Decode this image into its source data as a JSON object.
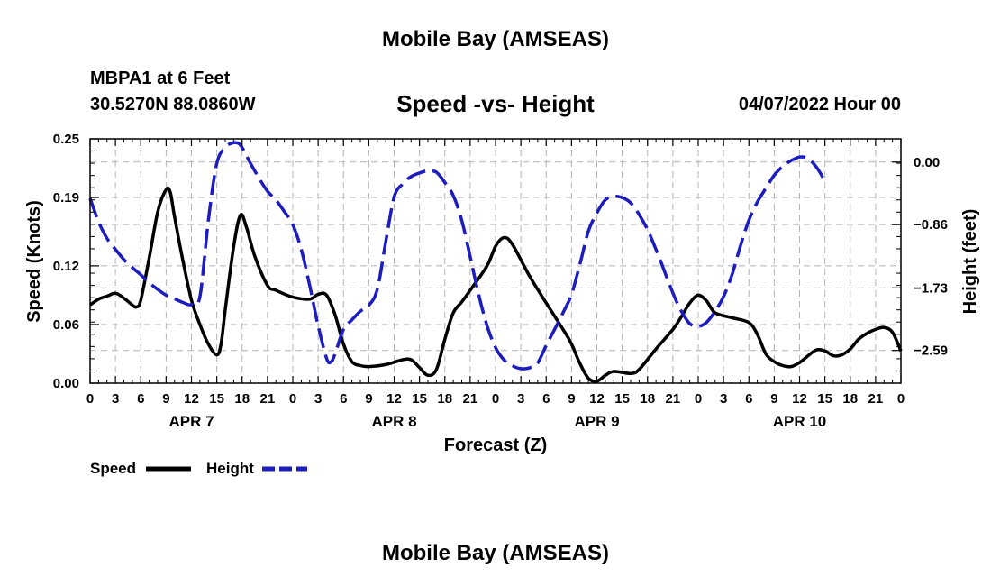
{
  "page": {
    "title_top": "Mobile Bay (AMSEAS)",
    "station": "MBPA1 at 6 Feet",
    "coords": "30.5270N  88.0860W",
    "date": "04/07/2022 Hour 00",
    "title_bottom": "Mobile Bay (AMSEAS)"
  },
  "chart_data": {
    "type": "line",
    "title": "Speed -vs- Height",
    "xlabel": "Forecast (Z)",
    "ylabel": "Speed (Knots)",
    "y2label": "Height (feet)",
    "x_unit": "hours from 04/07/2022 00Z",
    "xlim": [
      0,
      96
    ],
    "ylim": [
      0,
      0.25
    ],
    "y2lim": [
      -3.04,
      0.32
    ],
    "y_ticks": [
      0.0,
      0.06,
      0.12,
      0.19,
      0.25
    ],
    "y_tick_labels": [
      "0.00",
      "0.06",
      "0.12",
      "0.19",
      "0.25"
    ],
    "y2_ticks": [
      0.0,
      -0.86,
      -1.73,
      -2.59
    ],
    "y2_tick_labels": [
      "0.00",
      "−0.86",
      "−1.73",
      "−2.59"
    ],
    "x_ticks": [
      0,
      3,
      6,
      9,
      12,
      15,
      18,
      21,
      24,
      27,
      30,
      33,
      36,
      39,
      42,
      45,
      48,
      51,
      54,
      57,
      60,
      63,
      66,
      69,
      72,
      75,
      78,
      81,
      84,
      87,
      90,
      93,
      96
    ],
    "x_tick_labels": [
      "0",
      "3",
      "6",
      "9",
      "12",
      "15",
      "18",
      "21",
      "0",
      "3",
      "6",
      "9",
      "12",
      "15",
      "18",
      "21",
      "0",
      "3",
      "6",
      "9",
      "12",
      "15",
      "18",
      "21",
      "0",
      "3",
      "6",
      "9",
      "12",
      "15",
      "18",
      "21",
      "0"
    ],
    "day_labels": [
      {
        "x": 12,
        "label": "APR 7"
      },
      {
        "x": 36,
        "label": "APR 8"
      },
      {
        "x": 60,
        "label": "APR 9"
      },
      {
        "x": 84,
        "label": "APR 10"
      }
    ],
    "grid": true,
    "legend_position": "bottom-left",
    "series": [
      {
        "name": "Speed",
        "axis": "left",
        "color": "#000000",
        "style": "solid",
        "points": [
          [
            0,
            0.08
          ],
          [
            1,
            0.086
          ],
          [
            2,
            0.089
          ],
          [
            3,
            0.092
          ],
          [
            4,
            0.087
          ],
          [
            5,
            0.08
          ],
          [
            5.5,
            0.078
          ],
          [
            6,
            0.085
          ],
          [
            7,
            0.128
          ],
          [
            8,
            0.175
          ],
          [
            9,
            0.198
          ],
          [
            9.5,
            0.195
          ],
          [
            10,
            0.17
          ],
          [
            11,
            0.125
          ],
          [
            12,
            0.085
          ],
          [
            13,
            0.06
          ],
          [
            14,
            0.04
          ],
          [
            15,
            0.029
          ],
          [
            15.5,
            0.04
          ],
          [
            16,
            0.075
          ],
          [
            17,
            0.14
          ],
          [
            17.8,
            0.172
          ],
          [
            18.5,
            0.16
          ],
          [
            19.5,
            0.13
          ],
          [
            21,
            0.1
          ],
          [
            22,
            0.095
          ],
          [
            24,
            0.088
          ],
          [
            26,
            0.086
          ],
          [
            27,
            0.091
          ],
          [
            28,
            0.09
          ],
          [
            29,
            0.07
          ],
          [
            30,
            0.04
          ],
          [
            31,
            0.022
          ],
          [
            32,
            0.018
          ],
          [
            33,
            0.017
          ],
          [
            35,
            0.019
          ],
          [
            37,
            0.024
          ],
          [
            38,
            0.024
          ],
          [
            39,
            0.016
          ],
          [
            40,
            0.008
          ],
          [
            41,
            0.014
          ],
          [
            42,
            0.045
          ],
          [
            43,
            0.072
          ],
          [
            44,
            0.083
          ],
          [
            45,
            0.095
          ],
          [
            47,
            0.12
          ],
          [
            48,
            0.14
          ],
          [
            49,
            0.149
          ],
          [
            50,
            0.142
          ],
          [
            52,
            0.11
          ],
          [
            54,
            0.082
          ],
          [
            56,
            0.055
          ],
          [
            57,
            0.04
          ],
          [
            58,
            0.02
          ],
          [
            59,
            0.005
          ],
          [
            60,
            0.002
          ],
          [
            61,
            0.008
          ],
          [
            62,
            0.012
          ],
          [
            64,
            0.01
          ],
          [
            65,
            0.014
          ],
          [
            67,
            0.035
          ],
          [
            69,
            0.055
          ],
          [
            70,
            0.068
          ],
          [
            71,
            0.082
          ],
          [
            72,
            0.09
          ],
          [
            73,
            0.084
          ],
          [
            74,
            0.072
          ],
          [
            76,
            0.067
          ],
          [
            78,
            0.062
          ],
          [
            79,
            0.05
          ],
          [
            80,
            0.03
          ],
          [
            81,
            0.022
          ],
          [
            82,
            0.018
          ],
          [
            83,
            0.017
          ],
          [
            84,
            0.021
          ],
          [
            85,
            0.028
          ],
          [
            86,
            0.034
          ],
          [
            87,
            0.033
          ],
          [
            88,
            0.028
          ],
          [
            89,
            0.029
          ],
          [
            90,
            0.035
          ],
          [
            91,
            0.045
          ],
          [
            92,
            0.051
          ],
          [
            93,
            0.055
          ],
          [
            94,
            0.057
          ],
          [
            95,
            0.052
          ],
          [
            96,
            0.033
          ]
        ]
      },
      {
        "name": "Height",
        "axis": "right",
        "color": "#1c1cbf",
        "style": "dashed",
        "points": [
          [
            0,
            -0.5
          ],
          [
            1,
            -0.82
          ],
          [
            2,
            -1.05
          ],
          [
            3,
            -1.2
          ],
          [
            4,
            -1.34
          ],
          [
            5,
            -1.45
          ],
          [
            6,
            -1.55
          ],
          [
            7,
            -1.66
          ],
          [
            8,
            -1.75
          ],
          [
            9,
            -1.83
          ],
          [
            10,
            -1.88
          ],
          [
            11,
            -1.93
          ],
          [
            12,
            -1.96
          ],
          [
            13,
            -1.85
          ],
          [
            14,
            -0.8
          ],
          [
            15,
            -0.02
          ],
          [
            16,
            0.2
          ],
          [
            16.8,
            0.26
          ],
          [
            17.5,
            0.26
          ],
          [
            18,
            0.2
          ],
          [
            19,
            -0.02
          ],
          [
            20,
            -0.22
          ],
          [
            21,
            -0.4
          ],
          [
            22,
            -0.52
          ],
          [
            23,
            -0.68
          ],
          [
            24,
            -0.86
          ],
          [
            25,
            -1.2
          ],
          [
            26,
            -1.7
          ],
          [
            27,
            -2.25
          ],
          [
            28,
            -2.7
          ],
          [
            28.5,
            -2.75
          ],
          [
            29,
            -2.64
          ],
          [
            30,
            -2.3
          ],
          [
            31,
            -2.17
          ],
          [
            32,
            -2.05
          ],
          [
            33,
            -1.97
          ],
          [
            34,
            -1.75
          ],
          [
            35,
            -1.1
          ],
          [
            36,
            -0.48
          ],
          [
            37,
            -0.3
          ],
          [
            38,
            -0.2
          ],
          [
            39,
            -0.15
          ],
          [
            40,
            -0.12
          ],
          [
            41,
            -0.14
          ],
          [
            42,
            -0.28
          ],
          [
            43,
            -0.46
          ],
          [
            44,
            -0.8
          ],
          [
            45,
            -1.3
          ],
          [
            46,
            -1.82
          ],
          [
            47,
            -2.25
          ],
          [
            48,
            -2.55
          ],
          [
            49,
            -2.72
          ],
          [
            50,
            -2.8
          ],
          [
            51,
            -2.84
          ],
          [
            52,
            -2.83
          ],
          [
            53,
            -2.76
          ],
          [
            54,
            -2.52
          ],
          [
            55,
            -2.3
          ],
          [
            56,
            -2.07
          ],
          [
            57,
            -1.82
          ],
          [
            58,
            -1.4
          ],
          [
            59,
            -0.95
          ],
          [
            60,
            -0.7
          ],
          [
            61,
            -0.52
          ],
          [
            62,
            -0.47
          ],
          [
            63,
            -0.49
          ],
          [
            64,
            -0.56
          ],
          [
            65,
            -0.72
          ],
          [
            66,
            -0.93
          ],
          [
            67,
            -1.2
          ],
          [
            68,
            -1.5
          ],
          [
            69,
            -1.8
          ],
          [
            70,
            -2.05
          ],
          [
            71,
            -2.22
          ],
          [
            72,
            -2.26
          ],
          [
            73,
            -2.2
          ],
          [
            74,
            -2.05
          ],
          [
            75,
            -1.85
          ],
          [
            76,
            -1.55
          ],
          [
            77,
            -1.15
          ],
          [
            78,
            -0.8
          ],
          [
            79,
            -0.55
          ],
          [
            80,
            -0.36
          ],
          [
            81,
            -0.18
          ],
          [
            82,
            -0.06
          ],
          [
            83,
            0.02
          ],
          [
            84,
            0.07
          ],
          [
            85,
            0.05
          ],
          [
            86,
            -0.07
          ],
          [
            87,
            -0.26
          ]
        ]
      }
    ]
  },
  "legend": {
    "speed_label": "Speed",
    "height_label": "Height"
  }
}
